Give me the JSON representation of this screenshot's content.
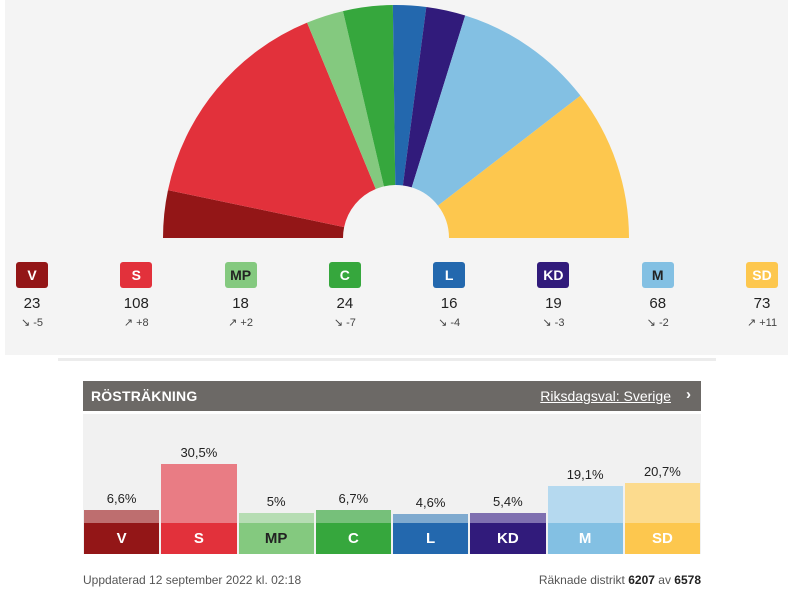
{
  "chart_data": [
    {
      "type": "pie",
      "variant": "parliament-half-donut",
      "title": "",
      "categories": [
        "V",
        "S",
        "MP",
        "C",
        "L",
        "KD",
        "M",
        "SD"
      ],
      "values": [
        23,
        108,
        18,
        24,
        16,
        19,
        68,
        73
      ],
      "changes": [
        "-5",
        "+8",
        "+2",
        "-7",
        "-4",
        "-3",
        "-2",
        "+11"
      ],
      "change_dirs": [
        "down",
        "up",
        "up",
        "down",
        "down",
        "down",
        "down",
        "up"
      ],
      "colors": [
        "#931617",
        "#e2313b",
        "#84c97f",
        "#36a73d",
        "#2368ae",
        "#311b7b",
        "#83c0e3",
        "#fdc74e"
      ]
    },
    {
      "type": "bar",
      "title": "RÖSTRÄKNING",
      "categories": [
        "V",
        "S",
        "MP",
        "C",
        "L",
        "KD",
        "M",
        "SD"
      ],
      "values": [
        6.6,
        30.5,
        5,
        6.7,
        4.6,
        5.4,
        19.1,
        20.7
      ],
      "value_labels": [
        "6,6%",
        "30,5%",
        "5%",
        "6,7%",
        "4,6%",
        "5,4%",
        "19,1%",
        "20,7%"
      ],
      "colors": [
        "#931617",
        "#e2313b",
        "#84c97f",
        "#36a73d",
        "#2368ae",
        "#311b7b",
        "#83c0e3",
        "#fdc74e"
      ],
      "bar_colors": [
        "#be6e6f",
        "#e97c84",
        "#b6ddb3",
        "#76c07a",
        "#7faacf",
        "#7f70b0",
        "#b5d9ef",
        "#fcdb8e"
      ],
      "ylim": [
        0,
        32
      ]
    }
  ],
  "parties": [
    {
      "code": "V",
      "seats": "23",
      "arrow": "↘",
      "change": "-5",
      "color": "#931617",
      "text": "#ffffff"
    },
    {
      "code": "S",
      "seats": "108",
      "arrow": "↗",
      "change": "+8",
      "color": "#e2313b",
      "text": "#ffffff"
    },
    {
      "code": "MP",
      "seats": "18",
      "arrow": "↗",
      "change": "+2",
      "color": "#84c97f",
      "text": "#222222"
    },
    {
      "code": "C",
      "seats": "24",
      "arrow": "↘",
      "change": "-7",
      "color": "#36a73d",
      "text": "#ffffff"
    },
    {
      "code": "L",
      "seats": "16",
      "arrow": "↘",
      "change": "-4",
      "color": "#2368ae",
      "text": "#ffffff"
    },
    {
      "code": "KD",
      "seats": "19",
      "arrow": "↘",
      "change": "-3",
      "color": "#311b7b",
      "text": "#ffffff"
    },
    {
      "code": "M",
      "seats": "68",
      "arrow": "↘",
      "change": "-2",
      "color": "#83c0e3",
      "text": "#222222"
    },
    {
      "code": "SD",
      "seats": "73",
      "arrow": "↗",
      "change": "+11",
      "color": "#fdc74e",
      "text": "#ffffff"
    }
  ],
  "count": {
    "title": "RÖSTRÄKNING",
    "link": "Riksdagsval: Sverige",
    "chevron": "›",
    "updated": "Uppdaterad 12 september 2022 kl. 02:18",
    "districts_prefix": "Räknade distrikt",
    "districts_counted": "6207",
    "districts_sep": "av",
    "districts_total": "6578"
  }
}
